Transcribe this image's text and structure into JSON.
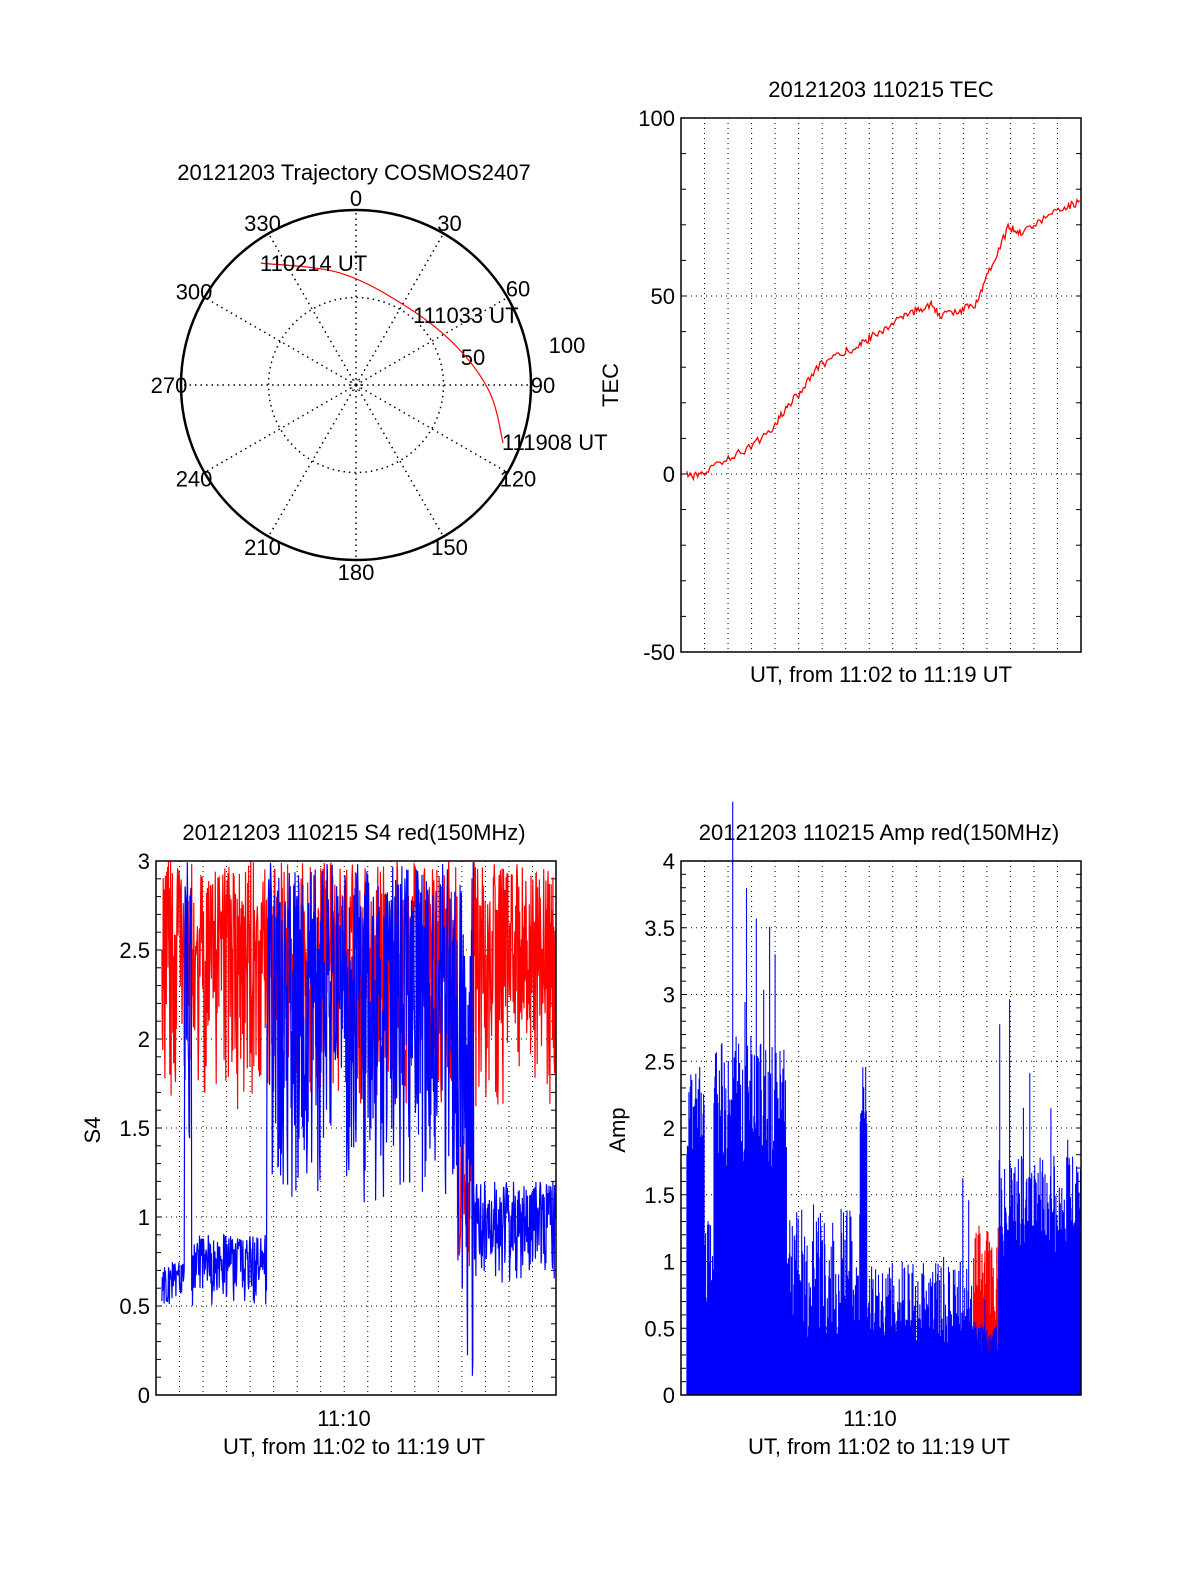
{
  "chart_data": [
    {
      "type": "polar",
      "title": "20121203 Trajectory COSMOS2407",
      "angle_labels": [
        "0",
        "30",
        "60",
        "90",
        "120",
        "150",
        "180",
        "210",
        "240",
        "270",
        "300",
        "330"
      ],
      "radial_labels": [
        "50",
        "100"
      ],
      "radial_range": [
        0,
        100
      ],
      "trajectory_color": "#ff0000",
      "trajectory": [
        {
          "az": 322,
          "r": 88.4
        },
        {
          "az": 352,
          "r": 64.6
        },
        {
          "az": 33.2,
          "r": 53.3
        },
        {
          "az": 69.4,
          "r": 61.7
        },
        {
          "az": 93.4,
          "r": 76.7
        },
        {
          "az": 111.5,
          "r": 90.3
        }
      ],
      "annotations": [
        "110214 UT",
        "111033 UT",
        "111908 UT"
      ]
    },
    {
      "type": "line",
      "title": "20121203 110215 TEC",
      "xlabel": "UT, from 11:02 to 11:19 UT",
      "ylabel": "TEC",
      "xlim_minutes_after_1102": [
        0,
        17
      ],
      "ylim": [
        -50,
        100
      ],
      "yticks": [
        "-50",
        "0",
        "50",
        "100"
      ],
      "grid": true,
      "series": [
        {
          "name": "TEC",
          "color": "#ff0000",
          "points": [
            [
              0.25,
              -0.3
            ],
            [
              0.8,
              -0.8
            ],
            [
              1.66,
              3.4
            ],
            [
              2.7,
              6.7
            ],
            [
              3.8,
              11.8
            ],
            [
              4.4,
              18
            ],
            [
              5.06,
              23
            ],
            [
              5.9,
              30.6
            ],
            [
              6.76,
              33.4
            ],
            [
              7.6,
              36.2
            ],
            [
              8.2,
              39
            ],
            [
              9.1,
              42.7
            ],
            [
              9.9,
              45.5
            ],
            [
              10.6,
              47.8
            ],
            [
              11.0,
              44.4
            ],
            [
              11.86,
              46
            ],
            [
              12.5,
              47.5
            ],
            [
              13.1,
              57.3
            ],
            [
              13.9,
              69.1
            ],
            [
              14.5,
              68
            ],
            [
              15.5,
              72
            ],
            [
              16.3,
              75
            ],
            [
              17.0,
              76.4
            ]
          ]
        }
      ]
    },
    {
      "type": "line",
      "title": "20121203 110215 S4 red(150MHz)",
      "xlabel": "UT, from 11:02 to 11:19 UT",
      "xtick_label": "11:10",
      "ylabel": "S4",
      "xlim_minutes_after_1102": [
        0,
        17
      ],
      "ylim": [
        0,
        3
      ],
      "yticks": [
        "0",
        "0.5",
        "1",
        "1.5",
        "2",
        "2.5",
        "3"
      ],
      "grid": true,
      "series": [
        {
          "name": "red",
          "color": "#ff0000",
          "envelope": [
            [
              0.25,
              12.8,
              1.6,
              3.0
            ],
            [
              12.8,
              13.4,
              0.6,
              1.5
            ],
            [
              13.4,
              17.0,
              1.6,
              3.0
            ]
          ]
        },
        {
          "name": "blue",
          "color": "#0000ff",
          "envelope": [
            [
              0.25,
              1.2,
              0.5,
              0.75
            ],
            [
              1.2,
              1.5,
              1.3,
              3.0
            ],
            [
              1.5,
              4.7,
              0.5,
              0.9
            ],
            [
              4.7,
              12.8,
              1.0,
              3.0
            ],
            [
              12.8,
              13.5,
              0.0,
              3.0
            ],
            [
              13.5,
              17.0,
              0.6,
              1.2
            ]
          ]
        }
      ]
    },
    {
      "type": "bar",
      "title": "20121203 110215 Amp red(150MHz)",
      "xlabel": "UT, from 11:02 to 11:19 UT",
      "xtick_label": "11:10",
      "ylabel": "Amp",
      "xlim_minutes_after_1102": [
        0,
        17
      ],
      "ylim": [
        0,
        4
      ],
      "yticks": [
        "0",
        "0.5",
        "1",
        "1.5",
        "2",
        "2.5",
        "3",
        "3.5",
        "4"
      ],
      "grid": true,
      "series": [
        {
          "name": "red",
          "color": "#ff0000",
          "envelope": [
            [
              12.4,
              13.5,
              0.4,
              1.3
            ]
          ]
        },
        {
          "name": "blue",
          "color": "#0000ff",
          "envelope": [
            [
              0.25,
              1.0,
              1.8,
              2.5
            ],
            [
              1.0,
              1.4,
              0.6,
              1.4
            ],
            [
              1.4,
              4.5,
              1.7,
              2.7
            ],
            [
              4.5,
              7.6,
              0.4,
              1.4
            ],
            [
              7.6,
              7.9,
              2.0,
              2.6
            ],
            [
              7.9,
              12.4,
              0.35,
              1.0
            ],
            [
              12.4,
              13.5,
              0.3,
              0.55
            ],
            [
              13.5,
              17.0,
              1.0,
              1.8
            ]
          ]
        }
      ]
    }
  ]
}
